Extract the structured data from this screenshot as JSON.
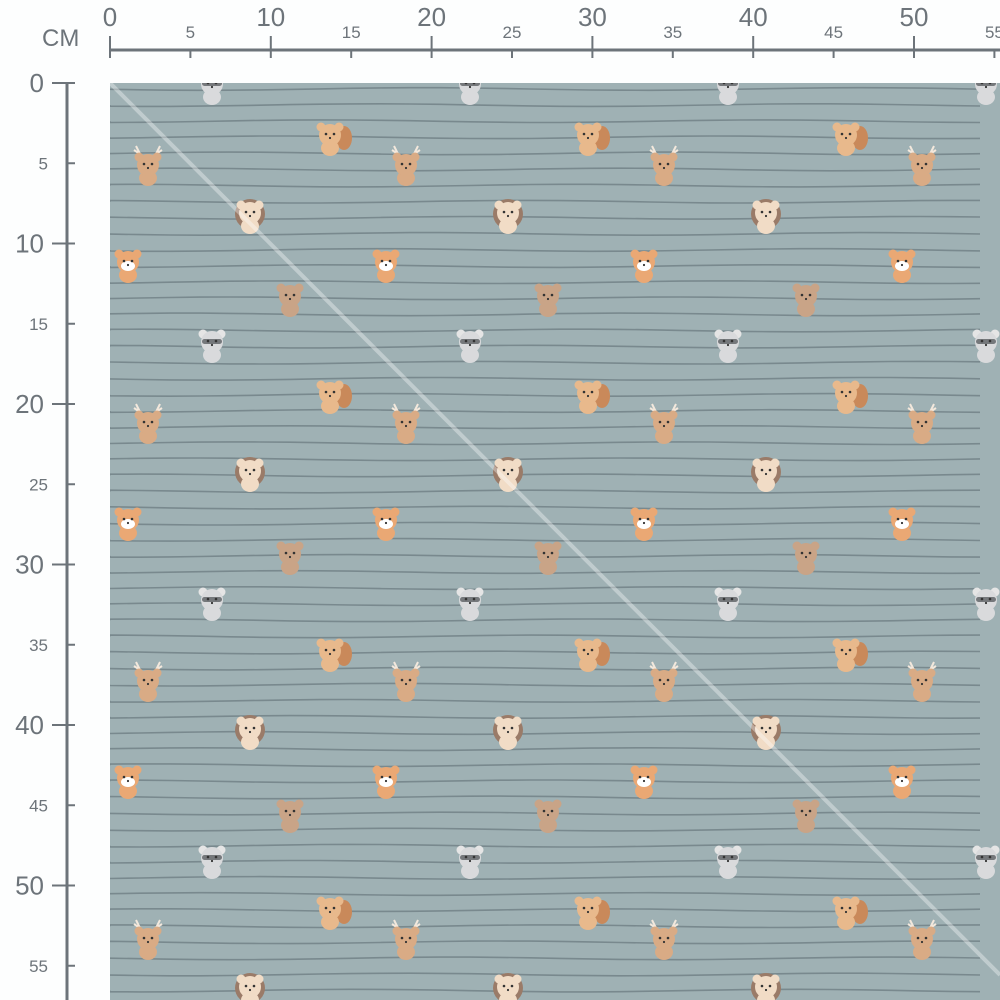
{
  "ruler": {
    "unit_label": "CM",
    "top_major_labels": [
      "0",
      "10",
      "20",
      "30",
      "40",
      "50"
    ],
    "top_minor_labels": [
      "5",
      "15",
      "25",
      "35",
      "45",
      "55"
    ],
    "left_major_labels": [
      "0",
      "10",
      "20",
      "30",
      "40",
      "50"
    ],
    "left_minor_labels": [
      "5",
      "15",
      "25",
      "35",
      "45",
      "55"
    ],
    "color": "#6d747a"
  },
  "fabric": {
    "background_color": "#9fb1b4",
    "stripe_color": "#6f8084",
    "pattern": "horizontal wavy stripes with woodland animals",
    "animals": [
      "raccoon",
      "squirrel",
      "deer",
      "hedgehog",
      "fox",
      "bear"
    ],
    "repeat_cm": 16
  }
}
